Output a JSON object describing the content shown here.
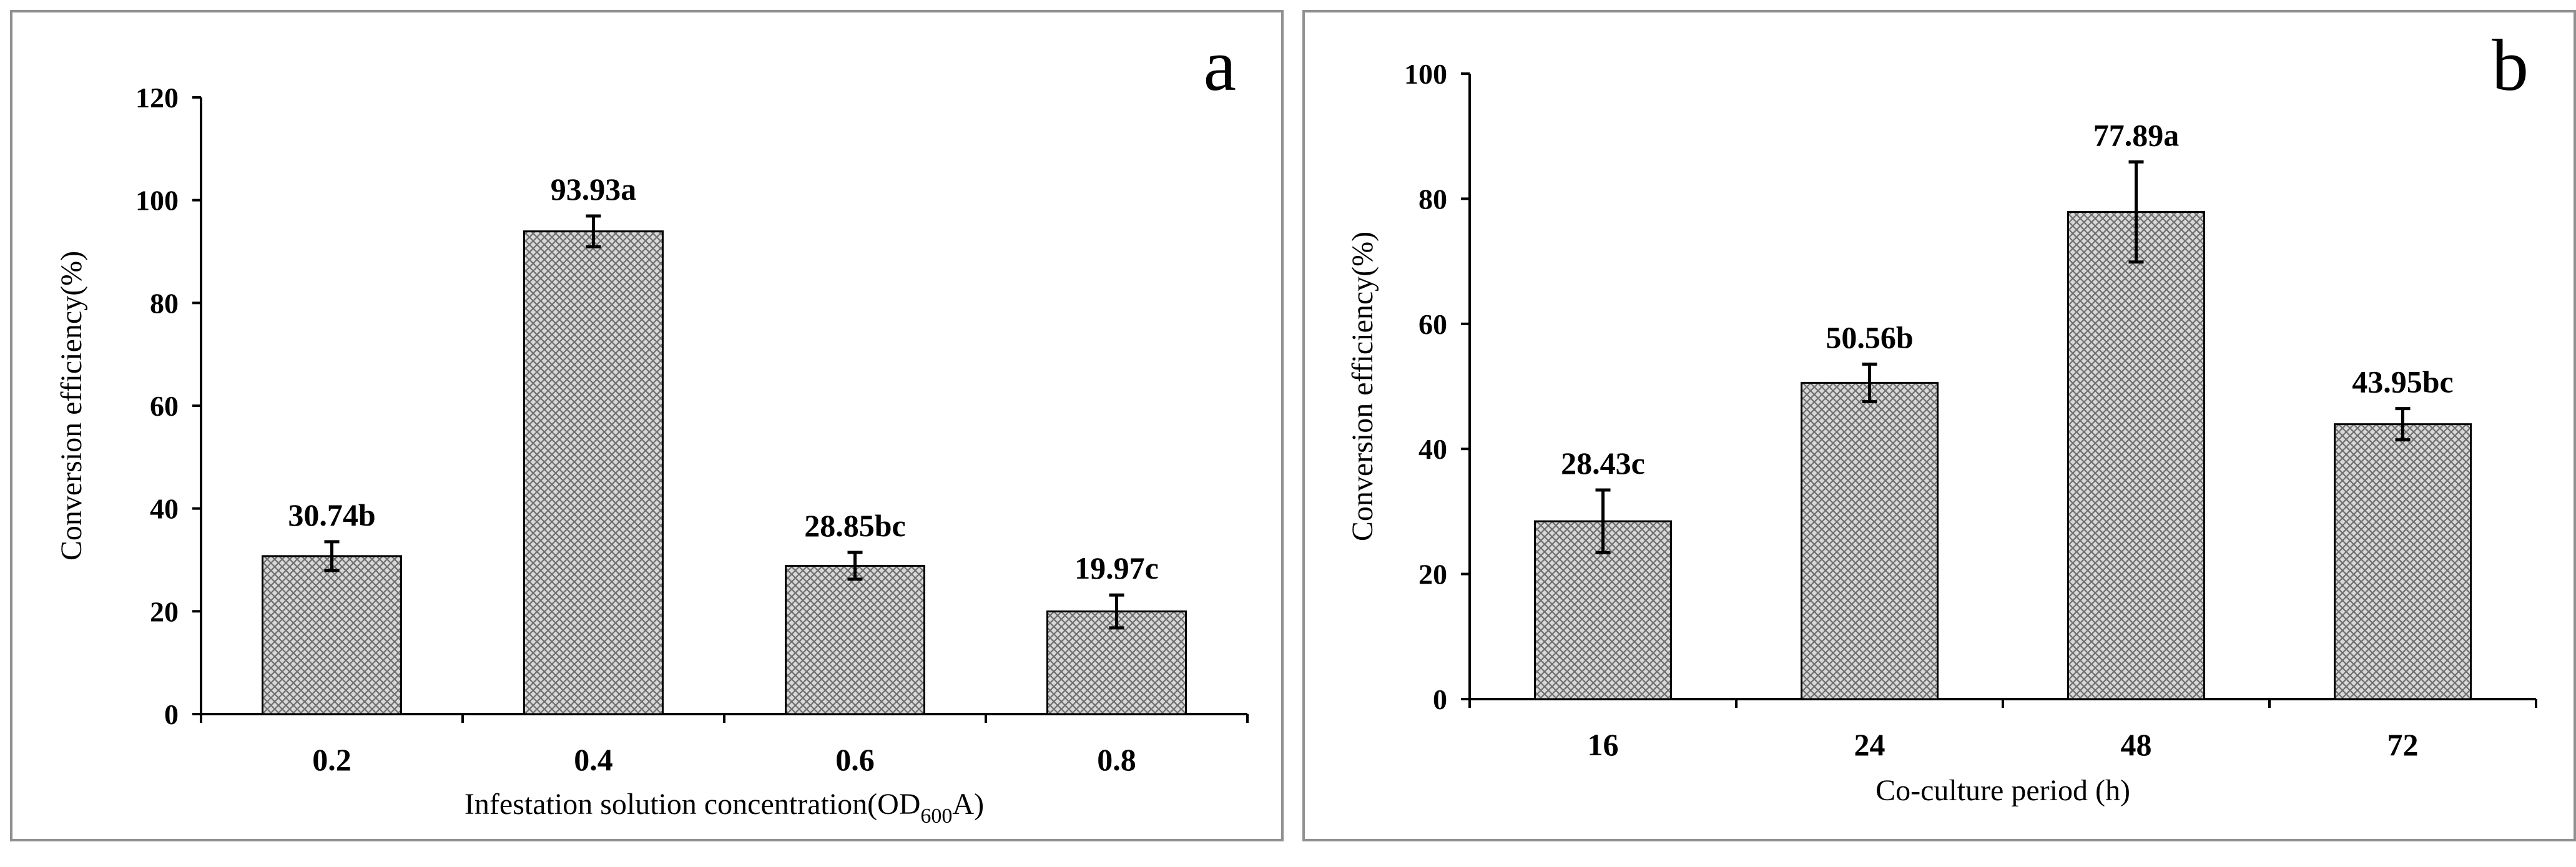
{
  "chart_data": [
    {
      "type": "bar",
      "panel_label": "a",
      "categories": [
        "0.2",
        "0.4",
        "0.6",
        "0.8"
      ],
      "values": [
        30.74,
        93.93,
        28.85,
        19.97
      ],
      "errors": [
        2.8,
        3.0,
        2.6,
        3.2
      ],
      "data_labels": [
        "30.74b",
        "93.93a",
        "28.85bc",
        "19.97c"
      ],
      "ylabel": "Conversion efficiency(%)",
      "xlabel_main": "Infestation solution concentration(OD",
      "xlabel_sub": "600",
      "xlabel_tail": "A)",
      "ylim": [
        0,
        120
      ],
      "yticks": [
        0,
        20,
        40,
        60,
        80,
        100,
        120
      ],
      "bar_pattern": "crosshatch",
      "grid": false,
      "legend": "none"
    },
    {
      "type": "bar",
      "panel_label": "b",
      "categories": [
        "16",
        "24",
        "48",
        "72"
      ],
      "values": [
        28.43,
        50.56,
        77.89,
        43.95
      ],
      "errors": [
        5.0,
        3.0,
        8.0,
        2.5
      ],
      "data_labels": [
        "28.43c",
        "50.56b",
        "77.89a",
        "43.95bc"
      ],
      "ylabel": "Conversion efficiency(%)",
      "xlabel_main": "Co-culture period (h)",
      "xlabel_sub": "",
      "xlabel_tail": "",
      "ylim": [
        0,
        100
      ],
      "yticks": [
        0,
        20,
        40,
        60,
        80,
        100
      ],
      "bar_pattern": "crosshatch",
      "grid": false,
      "legend": "none"
    }
  ]
}
